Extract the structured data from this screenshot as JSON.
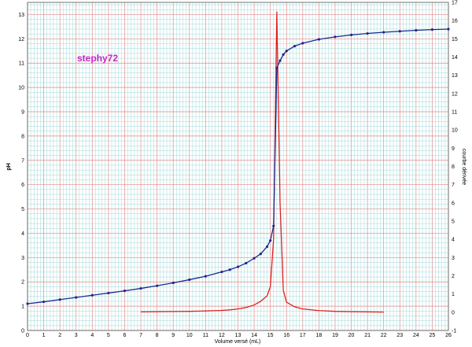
{
  "chart_data": {
    "type": "line",
    "xlabel": "Volume versé (mL)",
    "ylabel": "pH",
    "y2label": "courbe dérivée",
    "annotation": "stephy72",
    "xlim": [
      0,
      26
    ],
    "ylim": [
      0,
      13.5
    ],
    "y2lim": [
      -1,
      17
    ],
    "grid": true,
    "colors": {
      "ph": "#1a2a8c",
      "derivative": "#dd2222",
      "annotation": "#cc22cc",
      "minor_grid": "#9fd8d8",
      "major_grid": "#e08a8a"
    },
    "series": [
      {
        "axis": "left",
        "x": [
          0,
          1,
          2,
          3,
          4,
          5,
          6,
          7,
          8,
          9,
          10,
          11,
          12,
          12.5,
          13,
          13.5,
          14,
          14.4,
          14.8,
          15,
          15.2,
          15.4,
          15.6,
          15.8,
          16,
          16.5,
          17,
          18,
          19,
          20,
          21,
          22,
          23,
          24,
          25,
          26
        ],
        "values": [
          1.1,
          1.18,
          1.27,
          1.36,
          1.45,
          1.54,
          1.63,
          1.73,
          1.84,
          1.96,
          2.09,
          2.23,
          2.41,
          2.5,
          2.62,
          2.77,
          2.97,
          3.15,
          3.45,
          3.7,
          4.3,
          10.8,
          11.1,
          11.35,
          11.5,
          11.7,
          11.82,
          11.98,
          12.08,
          12.16,
          12.22,
          12.27,
          12.31,
          12.35,
          12.38,
          12.4
        ]
      },
      {
        "axis": "right",
        "x": [
          7,
          8,
          9,
          10,
          11,
          12,
          12.5,
          13,
          13.5,
          14,
          14.4,
          14.8,
          15,
          15.2,
          15.4,
          15.6,
          15.8,
          16,
          16.5,
          17,
          18,
          19,
          20,
          21,
          22
        ],
        "values": [
          0.02,
          0.03,
          0.04,
          0.05,
          0.07,
          0.1,
          0.13,
          0.18,
          0.26,
          0.4,
          0.6,
          0.9,
          1.4,
          4,
          16.5,
          6,
          1.2,
          0.55,
          0.3,
          0.18,
          0.09,
          0.05,
          0.03,
          0.02,
          0.01
        ]
      }
    ],
    "xticks": [
      0,
      1,
      2,
      3,
      4,
      5,
      6,
      7,
      8,
      9,
      10,
      11,
      12,
      13,
      14,
      15,
      16,
      17,
      18,
      19,
      20,
      21,
      22,
      23,
      24,
      25,
      26
    ],
    "yticks": [
      0,
      1,
      2,
      3,
      4,
      5,
      6,
      7,
      8,
      9,
      10,
      11,
      12,
      13
    ],
    "y2ticks": [
      -1,
      0,
      1,
      2,
      3,
      4,
      5,
      6,
      7,
      8,
      9,
      10,
      11,
      12,
      13,
      14,
      15,
      16,
      17
    ]
  }
}
